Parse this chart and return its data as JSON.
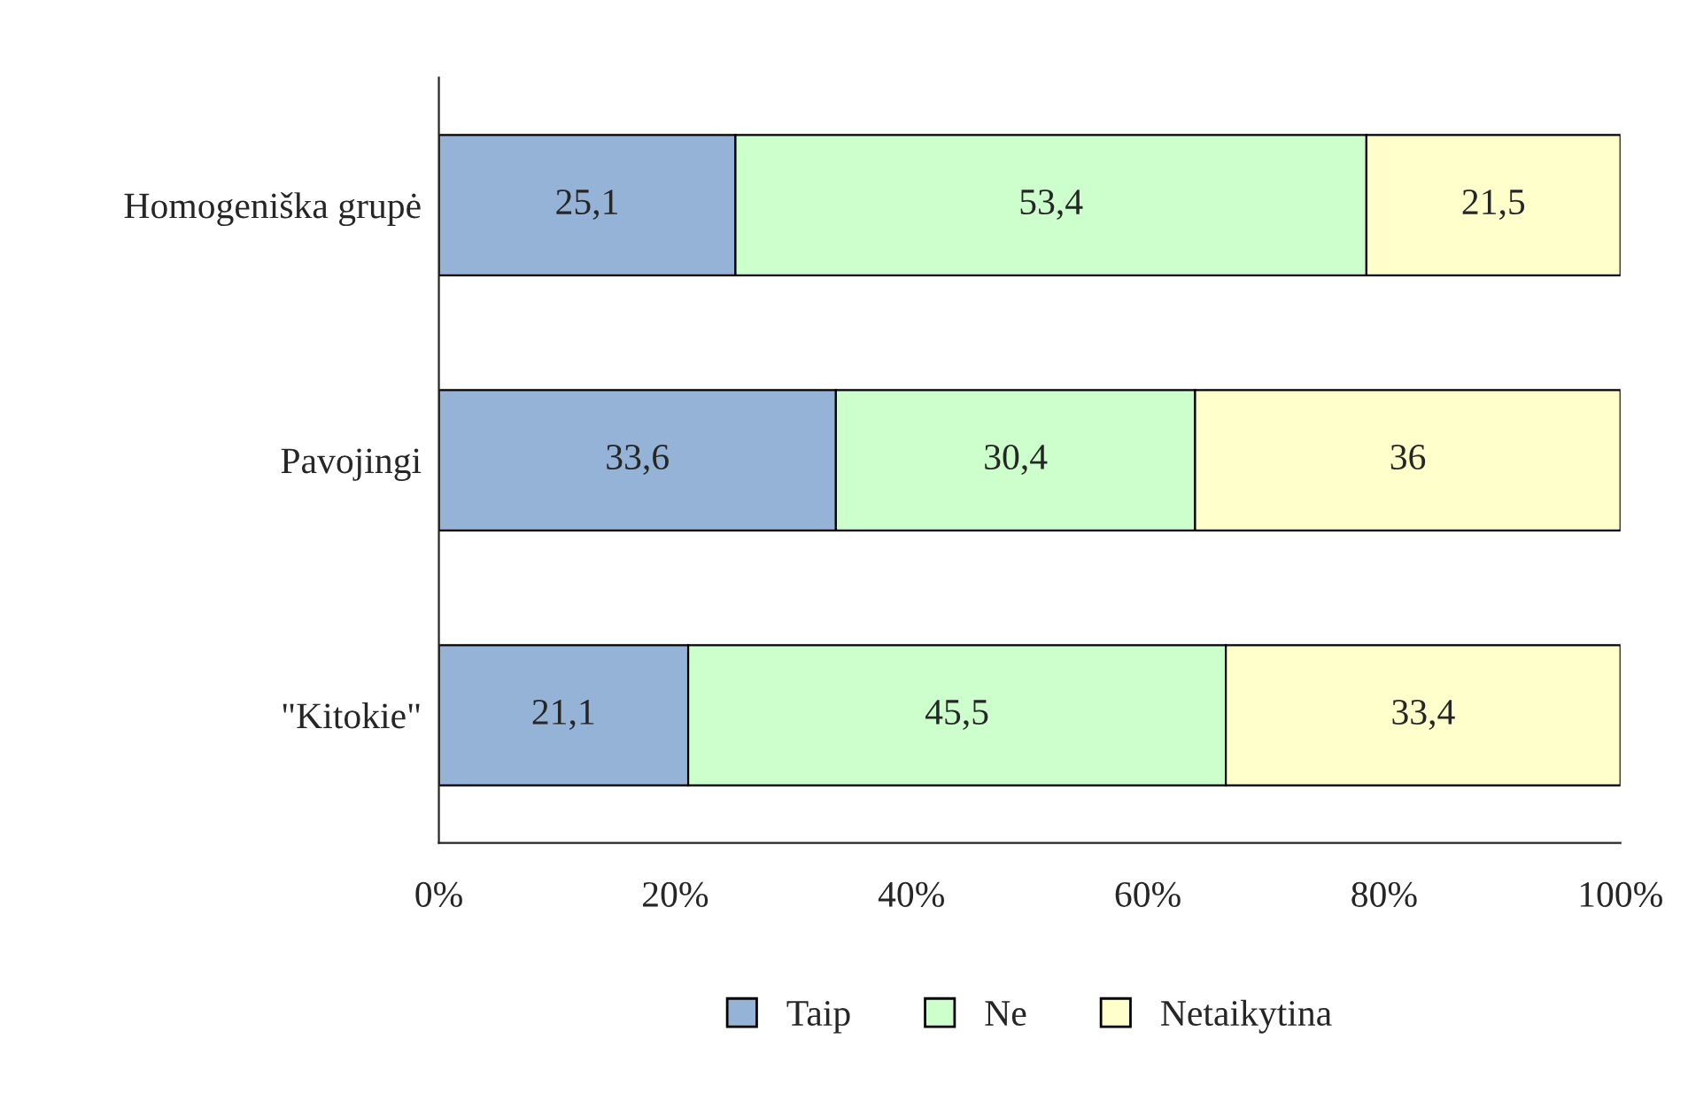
{
  "chart_data": {
    "type": "bar",
    "orientation": "horizontal",
    "stacked": true,
    "categories": [
      "Homogeniška grupė",
      "Pavojingi",
      "\"Kitokie\""
    ],
    "series": [
      {
        "name": "Taip",
        "color": "#95b3d7",
        "values": [
          25.1,
          33.6,
          21.1
        ],
        "value_labels": [
          "25,1",
          "33,6",
          "21,1"
        ]
      },
      {
        "name": "Ne",
        "color": "#ccffcc",
        "values": [
          53.4,
          30.4,
          45.5
        ],
        "value_labels": [
          "53,4",
          "30,4",
          "45,5"
        ]
      },
      {
        "name": "Netaikytina",
        "color": "#ffffcc",
        "values": [
          21.5,
          36,
          33.4
        ],
        "value_labels": [
          "21,5",
          "36",
          "33,4"
        ]
      }
    ],
    "xlim": [
      0,
      100
    ],
    "xticks": [
      {
        "value": 0,
        "label": "0%"
      },
      {
        "value": 20,
        "label": "20%"
      },
      {
        "value": 40,
        "label": "40%"
      },
      {
        "value": 60,
        "label": "60%"
      },
      {
        "value": 80,
        "label": "80%"
      },
      {
        "value": 100,
        "label": "100%"
      }
    ],
    "grid": false,
    "legend": "bottom"
  }
}
